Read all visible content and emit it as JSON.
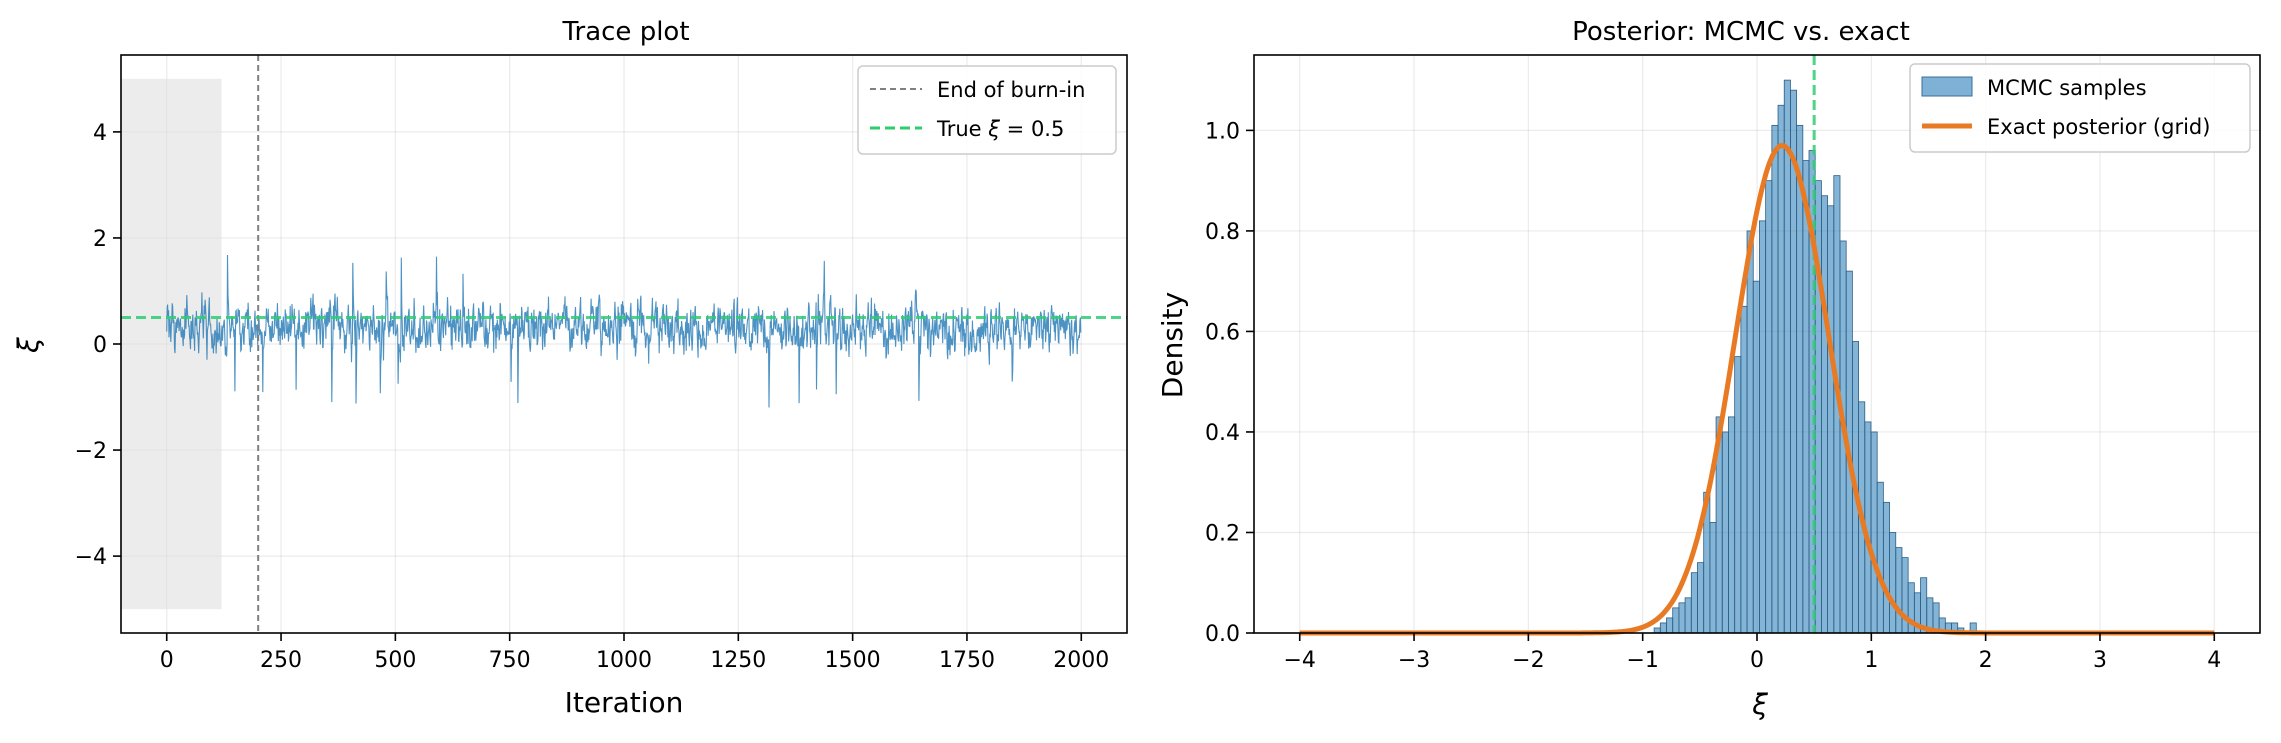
{
  "chart_data": [
    {
      "type": "line",
      "title": "Trace plot",
      "xlabel": "Iteration",
      "ylabel": "ξ",
      "xlim": [
        -100,
        2100
      ],
      "ylim": [
        -5.45,
        5.45
      ],
      "grid": true,
      "x_ticks": [
        0,
        250,
        500,
        750,
        1000,
        1250,
        1500,
        1750,
        2000
      ],
      "x_tick_labels": [
        "0",
        "250",
        "500",
        "750",
        "1000",
        "1250",
        "1500",
        "1750",
        "2000"
      ],
      "y_ticks": [
        -4,
        -2,
        0,
        2,
        4
      ],
      "y_tick_labels": [
        "−4",
        "−2",
        "0",
        "2",
        "4"
      ],
      "shaded_region": {
        "x": [
          -100,
          120
        ],
        "y": [
          -5,
          5
        ],
        "color": "#e0e0e0"
      },
      "burn_in_end": 200,
      "true_value": 0.5,
      "series": [
        {
          "kind": "trace",
          "n_iterations": 2000,
          "mean": 0.3,
          "sd": 0.38,
          "color": "#1f77b4"
        }
      ],
      "legend": {
        "placement": "top-right",
        "entries": [
          {
            "label": "End of burn-in",
            "style": "dashed",
            "color": "#808080"
          },
          {
            "label_prefix": "True ",
            "label_symbol": "ξ",
            "label_suffix": " = 0.5",
            "style": "dashed",
            "color": "#2ecc71"
          }
        ]
      }
    },
    {
      "type": "bar",
      "title": "Posterior: MCMC vs. exact",
      "xlabel": "ξ",
      "ylabel": "Density",
      "xlim": [
        -4.4,
        4.4
      ],
      "ylim": [
        0,
        1.15
      ],
      "grid": true,
      "x_ticks": [
        -4,
        -3,
        -2,
        -1,
        0,
        1,
        2,
        3,
        4
      ],
      "x_tick_labels": [
        "−4",
        "−3",
        "−2",
        "−1",
        "0",
        "1",
        "2",
        "3",
        "4"
      ],
      "y_ticks": [
        0,
        0.2,
        0.4,
        0.6,
        0.8,
        1.0
      ],
      "y_tick_labels": [
        "0.0",
        "0.2",
        "0.4",
        "0.6",
        "0.8",
        "1.0"
      ],
      "true_value": 0.5,
      "histogram": {
        "name": "MCMC samples",
        "color": "#1f77b4",
        "bin_start": -0.9,
        "bin_width": 0.0542,
        "heights": [
          0.01,
          0.02,
          0.03,
          0.05,
          0.06,
          0.07,
          0.12,
          0.14,
          0.28,
          0.22,
          0.43,
          0.4,
          0.43,
          0.55,
          0.65,
          0.8,
          0.7,
          0.82,
          0.9,
          1.01,
          1.05,
          1.1,
          1.08,
          1.01,
          0.94,
          0.96,
          0.9,
          0.87,
          0.85,
          0.91,
          0.78,
          0.72,
          0.58,
          0.46,
          0.42,
          0.4,
          0.3,
          0.26,
          0.2,
          0.17,
          0.15,
          0.1,
          0.08,
          0.11,
          0.07,
          0.06,
          0.03,
          0.02,
          0.02,
          0.01,
          0.0,
          0.02
        ]
      },
      "curve": {
        "name": "Exact posterior (grid)",
        "color": "#e87a24",
        "x_range": [
          -4,
          4
        ],
        "mean": 0.22,
        "sd": 0.41,
        "peak": 0.97
      },
      "legend": {
        "placement": "top-right",
        "entries": [
          {
            "label": "MCMC samples",
            "style": "patch",
            "color": "#7fb1d6"
          },
          {
            "label": "Exact posterior (grid)",
            "style": "line",
            "color": "#e87a24"
          }
        ]
      }
    }
  ]
}
